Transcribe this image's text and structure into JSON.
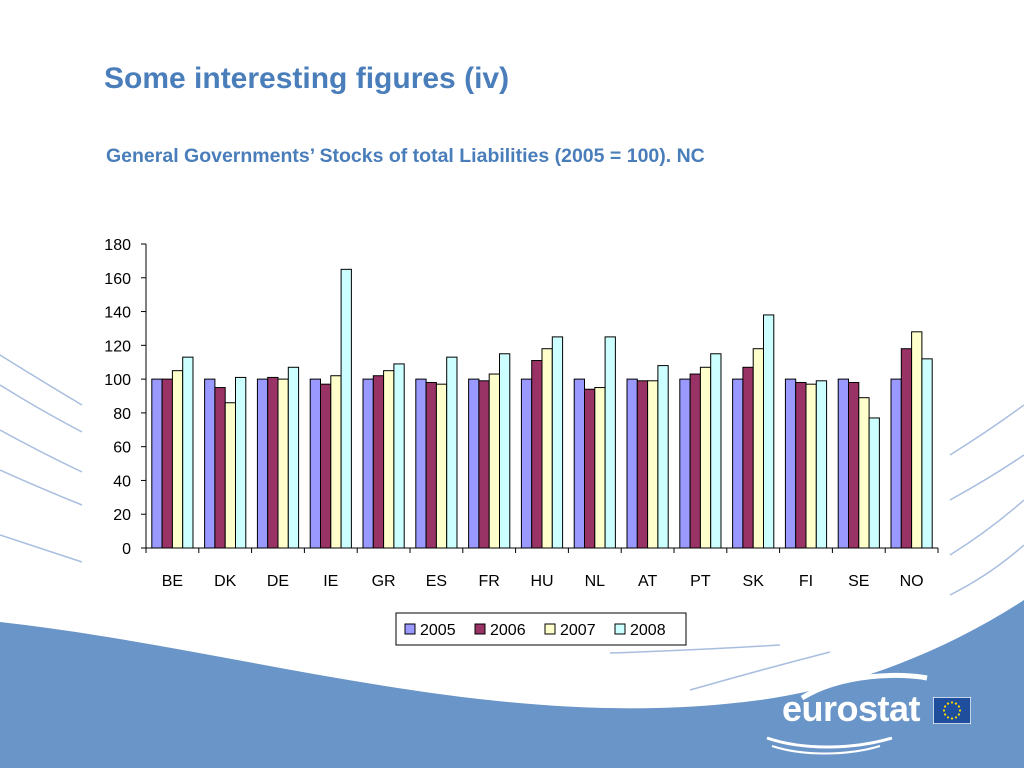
{
  "slide": {
    "title": "Some interesting figures (iv)",
    "subtitle": "General Governments’ Stocks of total Liabilities (2005 = 100). NC"
  },
  "colors": {
    "title": "#4a7ebb",
    "background_band": "#6a95c8",
    "decor_lines": "#9db3d6"
  },
  "logo": {
    "text": "eurostat",
    "flag_icon": "eu-flag-icon"
  },
  "chart_data": {
    "type": "bar",
    "categories": [
      "BE",
      "DK",
      "DE",
      "IE",
      "GR",
      "ES",
      "FR",
      "HU",
      "NL",
      "AT",
      "PT",
      "SK",
      "FI",
      "SE",
      "NO"
    ],
    "series": [
      {
        "name": "2005",
        "color": "#9999ff",
        "values": [
          100,
          100,
          100,
          100,
          100,
          100,
          100,
          100,
          100,
          100,
          100,
          100,
          100,
          100,
          100
        ]
      },
      {
        "name": "2006",
        "color": "#993366",
        "values": [
          100,
          95,
          101,
          97,
          102,
          98,
          99,
          111,
          94,
          99,
          103,
          107,
          98,
          98,
          118
        ]
      },
      {
        "name": "2007",
        "color": "#ffffcc",
        "values": [
          105,
          86,
          100,
          102,
          105,
          97,
          103,
          118,
          95,
          99,
          107,
          118,
          97,
          89,
          128
        ]
      },
      {
        "name": "2008",
        "color": "#ccffff",
        "values": [
          113,
          101,
          107,
          165,
          109,
          113,
          115,
          125,
          125,
          108,
          115,
          138,
          99,
          77,
          112
        ]
      }
    ],
    "ylim": [
      0,
      180
    ],
    "yticks": [
      0,
      20,
      40,
      60,
      80,
      100,
      120,
      140,
      160,
      180
    ],
    "xlabel": "",
    "ylabel": "",
    "grid": false,
    "legend": "bottom-center"
  }
}
